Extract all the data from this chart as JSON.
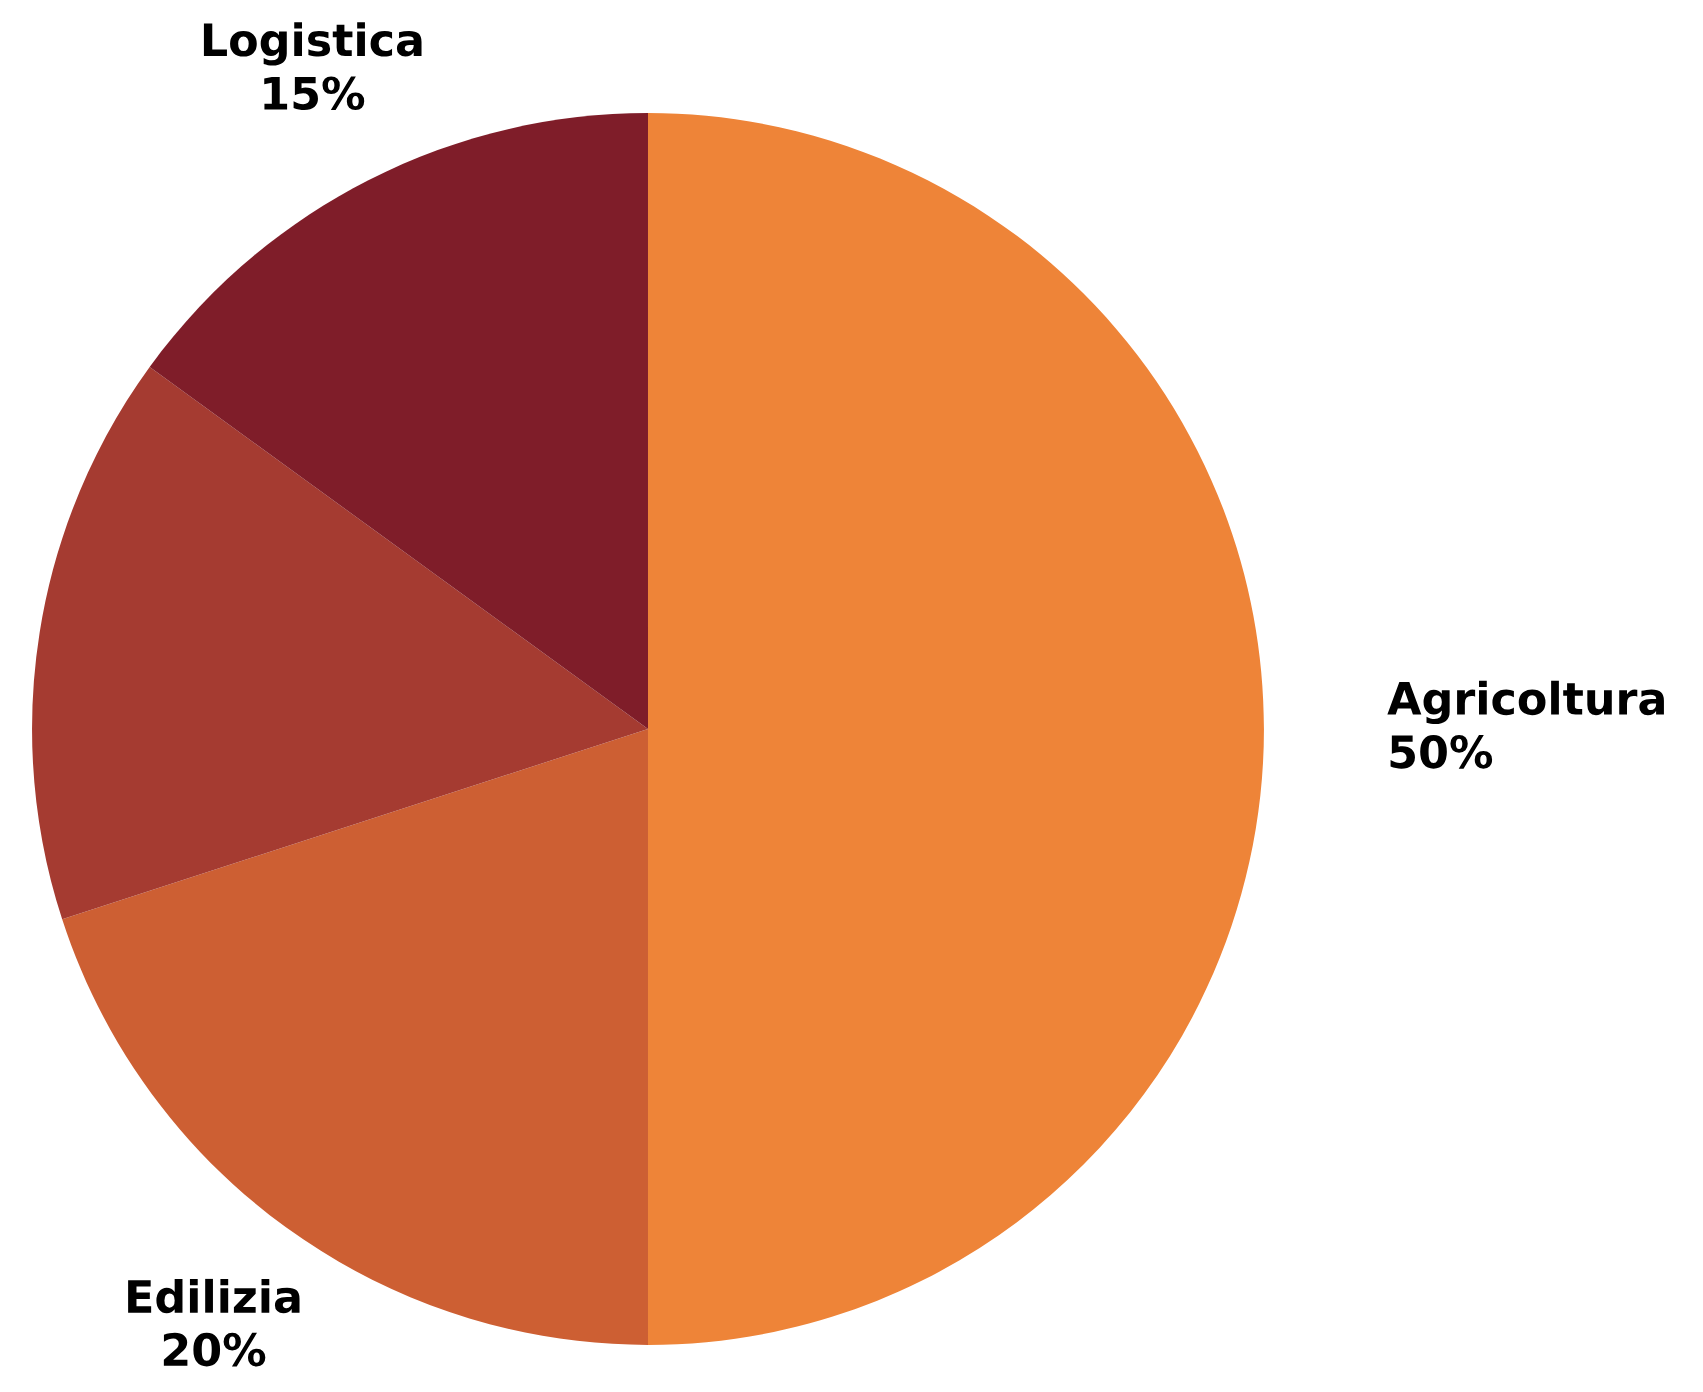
{
  "chart_data": {
    "type": "pie",
    "categories": [
      "Agricoltura",
      "Edilizia",
      null,
      "Logistica"
    ],
    "values": [
      50,
      20,
      15,
      15
    ],
    "colors": [
      "#ee8438",
      "#cd5f33",
      "#a53b31",
      "#7f1d29"
    ],
    "value_labels": [
      "50%",
      "20%",
      null,
      "15%"
    ]
  }
}
